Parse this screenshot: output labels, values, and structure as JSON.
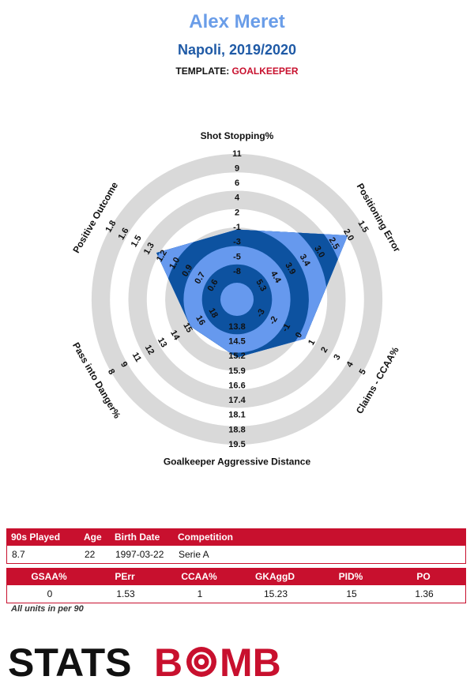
{
  "player": {
    "name": "Alex Meret",
    "subtitle": "Napoli, 2019/2020",
    "template_label": "TEMPLATE:",
    "template_value": "GOALKEEPER"
  },
  "chart_data": {
    "type": "radar",
    "ring_count": 7,
    "axes": [
      {
        "label": "Shot Stopping%",
        "ticks": [
          "-8",
          "-5",
          "-3",
          "-1",
          "2",
          "4",
          "6",
          "9",
          "11"
        ],
        "value": 0
      },
      {
        "label": "Positioning Error",
        "ticks": [
          "5.3",
          "4.4",
          "3.9",
          "3.4",
          "3.0",
          "2.5",
          "2.0",
          "1.5"
        ],
        "value": 1.53
      },
      {
        "label": "Claims - CCAA%",
        "ticks": [
          "-3",
          "-2",
          "-1",
          "0",
          "1",
          "2",
          "3",
          "4",
          "5"
        ],
        "value": 1
      },
      {
        "label": "Goalkeeper Aggressive Distance",
        "ticks": [
          "13.8",
          "14.5",
          "15.2",
          "15.9",
          "16.6",
          "17.4",
          "18.1",
          "18.8",
          "19.5"
        ],
        "value": 15.23
      },
      {
        "label": "Pass into Danger%",
        "ticks": [
          "18",
          "16",
          "15",
          "14",
          "13",
          "12",
          "11",
          "9",
          "8"
        ],
        "value": 15
      },
      {
        "label": "Positive Outcome",
        "ticks": [
          "0.6",
          "0.7",
          "0.9",
          "1.0",
          "1.2",
          "1.3",
          "1.5",
          "1.6",
          "1.8"
        ],
        "value": 1.36
      }
    ],
    "polygon_fraction": [
      0.48,
      0.88,
      0.54,
      0.4,
      0.37,
      0.64
    ],
    "colors": {
      "ring_gray": "#d9d9d9",
      "ring_dark": "#0d52a0",
      "ring_light": "#6699ee",
      "fill": "#6699ee"
    }
  },
  "info_table": {
    "headers": [
      "90s Played",
      "Age",
      "Birth Date",
      "Competition"
    ],
    "values": [
      "8.7",
      "22",
      "1997-03-22",
      "Serie A"
    ]
  },
  "metrics_table": {
    "headers": [
      "GSAA%",
      "PErr",
      "CCAA%",
      "GKAggD",
      "PID%",
      "PO"
    ],
    "values": [
      "0",
      "1.53",
      "1",
      "15.23",
      "15",
      "1.36"
    ]
  },
  "units_note": "All units in per 90",
  "logo": {
    "text_left": "STATS",
    "text_right": "B",
    "text_mid": "MB",
    "brand_color": "#c8102e"
  }
}
